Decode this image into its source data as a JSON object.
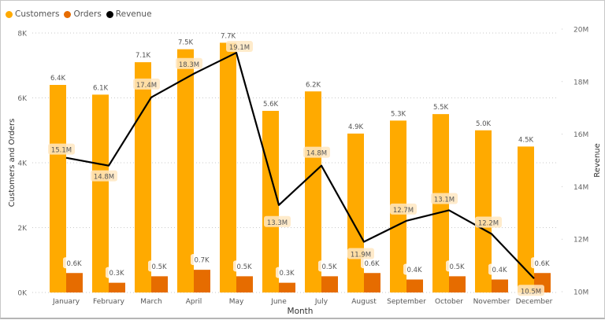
{
  "chart_data": {
    "type": "bar+line",
    "title": "",
    "xlabel": "Month",
    "ylabel": "Customers and Orders",
    "y2label": "Revenue",
    "categories": [
      "January",
      "February",
      "March",
      "April",
      "May",
      "June",
      "July",
      "August",
      "September",
      "October",
      "November",
      "December"
    ],
    "series": [
      {
        "name": "Customers",
        "type": "bar",
        "axis": "left",
        "color": "#FFAA00",
        "values": [
          6400,
          6100,
          7100,
          7500,
          7700,
          5600,
          6200,
          4900,
          5300,
          5500,
          5000,
          4500
        ],
        "labels": [
          "6.4K",
          "6.1K",
          "7.1K",
          "7.5K",
          "7.7K",
          "5.6K",
          "6.2K",
          "4.9K",
          "5.3K",
          "5.5K",
          "5.0K",
          "4.5K"
        ]
      },
      {
        "name": "Orders",
        "type": "bar",
        "axis": "left",
        "color": "#E66C00",
        "values": [
          600,
          300,
          500,
          700,
          500,
          300,
          500,
          600,
          400,
          500,
          400,
          600
        ],
        "labels": [
          "0.6K",
          "0.3K",
          "0.5K",
          "0.7K",
          "0.5K",
          "0.3K",
          "0.5K",
          "0.6K",
          "0.4K",
          "0.5K",
          "0.4K",
          "0.6K"
        ]
      },
      {
        "name": "Revenue",
        "type": "line",
        "axis": "right",
        "color": "#000000",
        "values": [
          15.1,
          14.8,
          17.4,
          18.3,
          19.1,
          13.3,
          14.8,
          11.9,
          12.7,
          13.1,
          12.2,
          10.5
        ],
        "labels": [
          "15.1M",
          "14.8M",
          "17.4M",
          "18.3M",
          "19.1M",
          "13.3M",
          "14.8M",
          "11.9M",
          "12.7M",
          "13.1M",
          "12.2M",
          "10.5M"
        ]
      }
    ],
    "ylim": [
      0,
      8000
    ],
    "y_ticks": [
      "0K",
      "2K",
      "4K",
      "6K",
      "8K"
    ],
    "y2lim": [
      10,
      20
    ],
    "y2_ticks": [
      "10M",
      "12M",
      "14M",
      "16M",
      "18M",
      "20M"
    ],
    "grid": true,
    "legend_position": "top-left"
  },
  "legend": [
    {
      "label": "Customers",
      "color": "#FFAA00"
    },
    {
      "label": "Orders",
      "color": "#E66C00"
    },
    {
      "label": "Revenue",
      "color": "#000000"
    }
  ]
}
